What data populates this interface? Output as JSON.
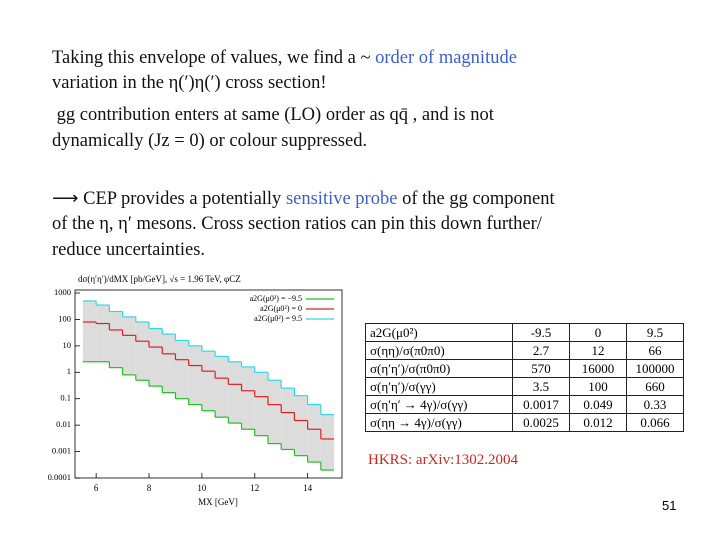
{
  "lines": [
    {
      "parts": [
        {
          "text": "Taking this envelope of values, we find a ~ "
        },
        {
          "text": "order of magnitude",
          "color": "#3a5fcd"
        }
      ]
    },
    {
      "parts": [
        {
          "text": "variation in the η(′)η(′) cross section!"
        }
      ]
    },
    {
      "parts": [
        {
          "text": " gg contribution enters at same (LO) order as qq̄ , and is not"
        }
      ]
    },
    {
      "parts": [
        {
          "text": "dynamically (Jz = 0) or colour suppressed."
        }
      ]
    },
    {
      "parts": [
        {
          "text": "⟶ CEP provides a potentially "
        },
        {
          "text": "sensitive probe",
          "color": "#3a5fcd"
        },
        {
          "text": " of the gg component"
        }
      ]
    },
    {
      "parts": [
        {
          "text": "of the η, η′ mesons. Cross section ratios can pin this down further/"
        }
      ]
    },
    {
      "parts": [
        {
          "text": "reduce uncertainties."
        }
      ]
    }
  ],
  "chart": {
    "type": "step",
    "title": "dσ(η′η′)/dMX [pb/GeV], √s = 1.96 TeV, φCZ",
    "x_label": "MX [GeV]",
    "log_y": true,
    "bins": [
      5.5,
      6,
      6.5,
      7,
      7.5,
      8,
      8.5,
      9,
      9.5,
      10,
      10.5,
      11,
      11.5,
      12,
      12.5,
      13,
      13.5,
      14,
      14.5,
      15
    ],
    "series": [
      {
        "name": "a2G(μ0²) = −9.5",
        "color": "#22c022",
        "values": [
          2.5,
          2.5,
          1.5,
          0.8,
          0.5,
          0.3,
          0.17,
          0.1,
          0.06,
          0.035,
          0.02,
          0.012,
          0.007,
          0.004,
          0.002,
          0.0012,
          0.0007,
          0.0004,
          0.0002
        ]
      },
      {
        "name": "a2G(μ0²) = 0",
        "color": "#e02020",
        "values": [
          80,
          70,
          40,
          25,
          15,
          9,
          5,
          3,
          1.8,
          1.1,
          0.6,
          0.35,
          0.2,
          0.12,
          0.06,
          0.03,
          0.015,
          0.007,
          0.003
        ]
      },
      {
        "name": "a2G(μ0²) = 9.5",
        "color": "#30d8e8",
        "values": [
          500,
          350,
          200,
          125,
          80,
          45,
          28,
          16,
          10,
          6.3,
          4,
          2.5,
          1.6,
          1,
          0.5,
          0.25,
          0.13,
          0.06,
          0.025
        ]
      }
    ],
    "band_color": "#dcdcdc",
    "xlim": [
      5.2,
      15.3
    ],
    "ylim": [
      0.0001,
      1300
    ],
    "xticks": [
      6,
      8,
      10,
      12,
      14
    ],
    "yticks": [
      1000,
      100,
      10,
      1,
      0.1,
      0.01,
      0.001,
      0.0001
    ],
    "legend": "upper right"
  },
  "table": {
    "rows": [
      [
        "a2G(μ0²)",
        "-9.5",
        "0",
        "9.5"
      ],
      [
        "σ(ηη)/σ(π0π0)",
        "2.7",
        "12",
        "66"
      ],
      [
        "σ(η′η′)/σ(π0π0)",
        "570",
        "16000",
        "100000"
      ],
      [
        "σ(η′η′)/σ(γγ)",
        "3.5",
        "100",
        "660"
      ],
      [
        "σ(η′η′ → 4γ)/σ(γγ)",
        "0.0017",
        "0.049",
        "0.33"
      ],
      [
        "σ(ηη → 4γ)/σ(γγ)",
        "0.0025",
        "0.012",
        "0.066"
      ]
    ]
  },
  "reference": "HKRS: arXiv:1302.2004",
  "page_number": "51"
}
